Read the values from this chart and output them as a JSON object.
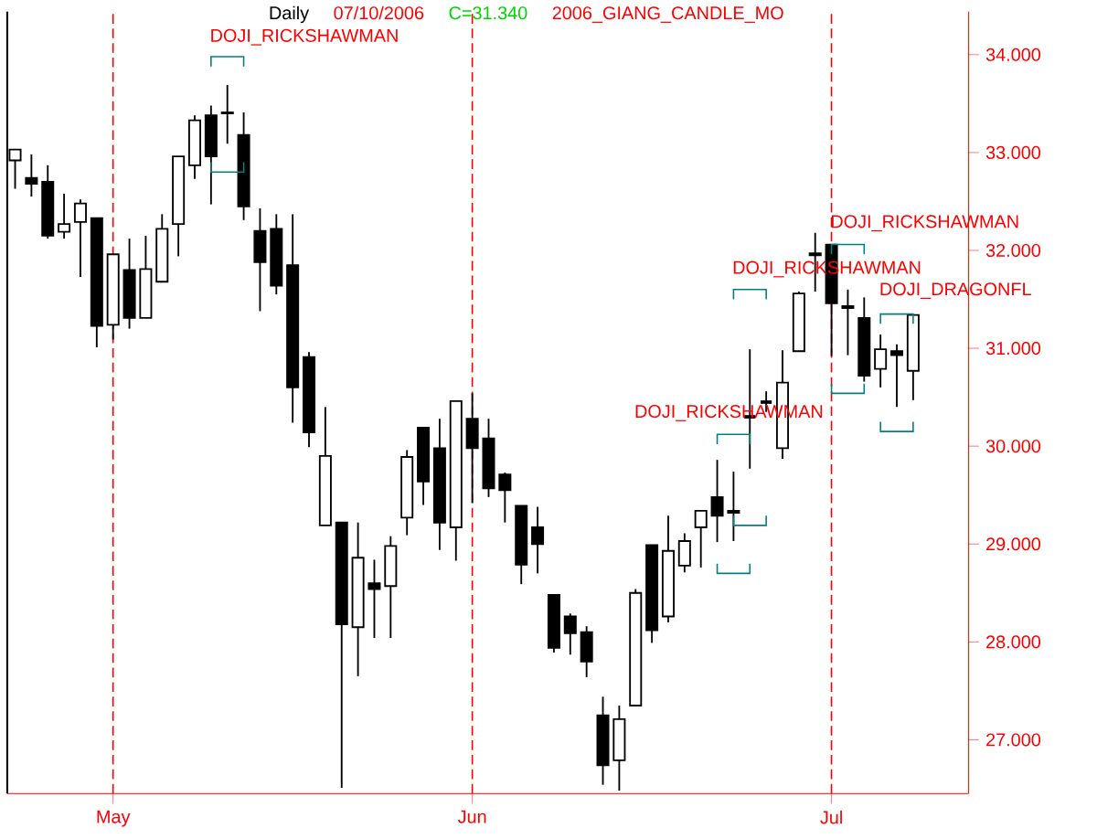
{
  "chart_data": {
    "type": "candlestick",
    "title": "Daily",
    "color": "#000000",
    "categories": [
      null,
      null,
      null,
      null,
      null,
      null,
      "May",
      null,
      null,
      null,
      null,
      null,
      null,
      null,
      null,
      null,
      null,
      null,
      null,
      null,
      null,
      null,
      null,
      null,
      null,
      null,
      null,
      null,
      "Jun",
      null,
      null,
      null,
      null,
      null,
      null,
      null,
      null,
      null,
      null,
      null,
      null,
      null,
      null,
      null,
      null,
      null,
      null,
      null,
      null,
      null,
      "Jul",
      null,
      null,
      null,
      null,
      null
    ],
    "ohlc": [
      [
        32.92,
        33.03,
        32.63,
        33.03
      ],
      [
        32.74,
        32.98,
        32.55,
        32.68
      ],
      [
        32.7,
        32.87,
        32.12,
        32.15
      ],
      [
        32.19,
        32.58,
        32.12,
        32.27
      ],
      [
        32.29,
        32.52,
        31.73,
        32.48
      ],
      [
        32.33,
        32.33,
        31.01,
        31.23
      ],
      [
        31.24,
        31.96,
        31.09,
        31.96
      ],
      [
        31.8,
        32.12,
        31.2,
        31.31
      ],
      [
        31.31,
        32.15,
        31.31,
        31.81
      ],
      [
        31.68,
        32.37,
        31.68,
        32.22
      ],
      [
        32.27,
        32.96,
        31.94,
        32.96
      ],
      [
        32.87,
        33.38,
        32.73,
        33.33
      ],
      [
        33.38,
        33.48,
        32.47,
        32.96
      ],
      [
        33.41,
        33.69,
        33.09,
        33.4
      ],
      [
        33.18,
        33.41,
        32.31,
        32.45
      ],
      [
        32.2,
        32.43,
        31.38,
        31.88
      ],
      [
        32.22,
        32.37,
        31.55,
        31.64
      ],
      [
        31.85,
        32.37,
        30.24,
        30.6
      ],
      [
        30.91,
        30.96,
        29.99,
        30.14
      ],
      [
        29.19,
        30.4,
        29.19,
        29.9
      ],
      [
        29.22,
        29.22,
        26.51,
        28.18
      ],
      [
        28.15,
        29.22,
        27.65,
        28.86
      ],
      [
        28.6,
        28.84,
        28.04,
        28.54
      ],
      [
        28.57,
        29.08,
        28.04,
        28.98
      ],
      [
        29.27,
        29.96,
        29.09,
        29.89
      ],
      [
        30.19,
        30.19,
        29.4,
        29.64
      ],
      [
        29.98,
        30.28,
        28.94,
        29.22
      ],
      [
        29.17,
        30.46,
        28.83,
        30.46
      ],
      [
        30.28,
        30.54,
        29.42,
        29.98
      ],
      [
        30.08,
        30.28,
        29.48,
        29.57
      ],
      [
        29.71,
        29.73,
        29.22,
        29.55
      ],
      [
        29.39,
        29.39,
        28.59,
        28.79
      ],
      [
        29.17,
        29.38,
        28.7,
        29.0
      ],
      [
        28.48,
        28.48,
        27.89,
        27.94
      ],
      [
        28.26,
        28.29,
        27.87,
        28.09
      ],
      [
        28.1,
        28.16,
        27.64,
        27.8
      ],
      [
        27.25,
        27.44,
        26.54,
        26.74
      ],
      [
        26.79,
        27.35,
        26.48,
        27.21
      ],
      [
        27.35,
        28.54,
        27.35,
        28.5
      ],
      [
        28.99,
        28.99,
        27.99,
        28.12
      ],
      [
        28.26,
        29.29,
        28.2,
        28.93
      ],
      [
        28.78,
        29.11,
        28.71,
        29.03
      ],
      [
        29.17,
        29.34,
        28.76,
        29.34
      ],
      [
        29.48,
        29.86,
        29.02,
        29.29
      ],
      [
        29.34,
        29.74,
        29.03,
        29.32
      ],
      [
        30.3,
        30.99,
        29.77,
        30.3
      ],
      [
        30.45,
        30.56,
        30.35,
        30.45
      ],
      [
        29.98,
        30.98,
        29.87,
        30.65
      ],
      [
        30.97,
        31.58,
        30.97,
        31.56
      ],
      [
        31.97,
        32.18,
        31.58,
        31.95
      ],
      [
        32.06,
        32.06,
        30.92,
        31.46
      ],
      [
        31.43,
        31.6,
        30.93,
        31.41
      ],
      [
        31.31,
        31.52,
        30.66,
        30.72
      ],
      [
        30.79,
        31.14,
        30.6,
        30.99
      ],
      [
        30.97,
        31.04,
        30.4,
        30.93
      ],
      [
        30.77,
        31.34,
        30.47,
        31.34
      ]
    ],
    "ylim": [
      26.45,
      34.44
    ],
    "yticks": [
      {
        "value": 27,
        "label": "27.000"
      },
      {
        "value": 28,
        "label": "28.000"
      },
      {
        "value": 29,
        "label": "29.000"
      },
      {
        "value": 30,
        "label": "30.000"
      },
      {
        "value": 31,
        "label": "31.000"
      },
      {
        "value": 32,
        "label": "32.000"
      },
      {
        "value": 33,
        "label": "33.000"
      },
      {
        "value": 34,
        "label": "34.000"
      }
    ],
    "ref_lines": [
      {
        "axis": "x",
        "value": "May",
        "color": "#ff0000",
        "line_style": "dashed"
      },
      {
        "axis": "x",
        "value": "Jun",
        "color": "#ff0000",
        "line_style": "dashed"
      },
      {
        "axis": "x",
        "value": "Jul",
        "color": "#ff0000",
        "line_style": "dashed"
      }
    ],
    "annotations": [
      "07/10/2006",
      "C=31.340",
      "2006_GIANG_CANDLE_MO",
      "DOJI_RICKSHAWMAN",
      "DOJI_RICKSHAWMAN",
      "DOJI_RICKSHAWMAN",
      "DOJI_RICKSHAWMAN",
      "DOJI_DRAGONFL"
    ]
  }
}
